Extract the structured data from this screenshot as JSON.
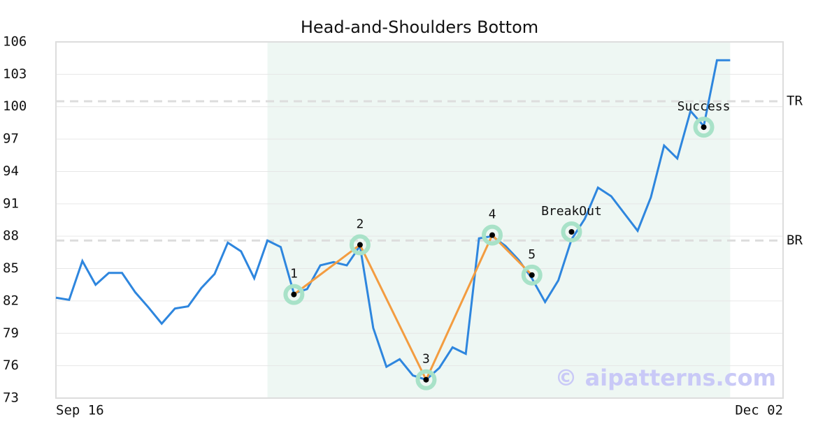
{
  "chart_data": {
    "type": "line",
    "title": "Head-and-Shoulders Bottom",
    "x": [
      0,
      1,
      2,
      3,
      4,
      5,
      6,
      7,
      8,
      9,
      10,
      11,
      12,
      13,
      14,
      15,
      16,
      17,
      18,
      19,
      20,
      21,
      22,
      23,
      24,
      25,
      26,
      27,
      28,
      29,
      30,
      31,
      32,
      33,
      34,
      35,
      36,
      37,
      38,
      39,
      40,
      41,
      42,
      43,
      44,
      45,
      46,
      47,
      48,
      49,
      50,
      51
    ],
    "series": [
      {
        "color": "#2e86de",
        "values": [
          82.3,
          82.1,
          85.7,
          83.5,
          84.6,
          84.6,
          82.8,
          81.4,
          79.9,
          81.3,
          81.5,
          83.2,
          84.5,
          87.4,
          86.6,
          84.1,
          87.6,
          87.0,
          82.7,
          83.1,
          85.3,
          85.6,
          85.3,
          87.1,
          79.5,
          75.9,
          76.6,
          75.1,
          74.7,
          75.8,
          77.7,
          77.1,
          87.8,
          88.0,
          87.1,
          85.8,
          84.1,
          81.9,
          83.9,
          87.7,
          89.6,
          92.5,
          91.7,
          90.1,
          88.5,
          91.6,
          96.4,
          95.2,
          99.6,
          98.2,
          104.3,
          104.3
        ]
      }
    ],
    "pattern": {
      "color": "#f39c40",
      "labels": [
        "1",
        "2",
        "3",
        "4",
        "5"
      ],
      "x": [
        18,
        23,
        28,
        33,
        36
      ],
      "values": [
        82.6,
        87.2,
        74.7,
        88.1,
        84.4
      ]
    },
    "annotations": [
      {
        "label": "BreakOut",
        "x": 39,
        "y": 88.4
      },
      {
        "label": "Success",
        "x": 49,
        "y": 98.1
      }
    ],
    "highlight": [
      16,
      51
    ],
    "levels": [
      {
        "label": "TR",
        "value": 100.5
      },
      {
        "label": "BR",
        "value": 87.6
      }
    ],
    "xlim": [
      0,
      55
    ],
    "xticks": [
      {
        "value": 0,
        "label": "Sep 16"
      },
      {
        "value": 55,
        "label": "Dec 02"
      }
    ],
    "ylim": [
      73,
      106
    ],
    "yticks": [
      73,
      76,
      79,
      82,
      85,
      88,
      91,
      94,
      97,
      100,
      103,
      106
    ],
    "grid": true,
    "watermark": "© aipatterns.com"
  }
}
